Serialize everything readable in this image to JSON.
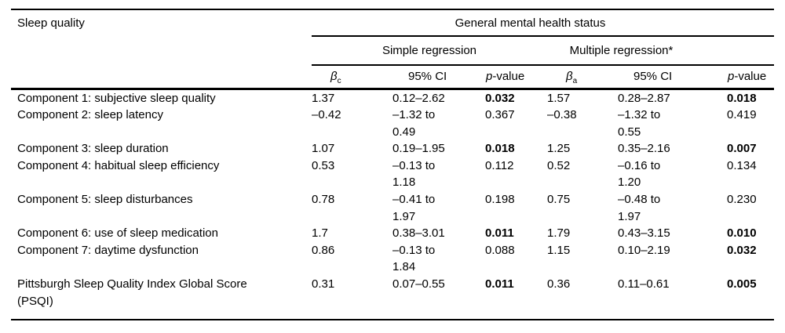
{
  "table": {
    "stub_header": "Sleep quality",
    "spanner": "General mental health status",
    "groups": {
      "simple": "Simple regression",
      "multiple": "Multiple regression*"
    },
    "col_headers": {
      "beta_symbol": "β",
      "beta_c_sub": "c",
      "beta_a_sub": "a",
      "ci_label_1": "95% CI",
      "ci_label_2": "95% CI",
      "p_italic": "p",
      "p_rest": "-value"
    },
    "rows": [
      {
        "label": "Component 1: subjective sleep quality",
        "simple": {
          "beta": "1.37",
          "ci": "0.12–2.62",
          "p": "0.032",
          "p_bold": true
        },
        "multiple": {
          "beta": "1.57",
          "ci": "0.28–2.87",
          "p": "0.018",
          "p_bold": true
        }
      },
      {
        "label": "Component 2: sleep latency",
        "simple": {
          "beta": "–0.42",
          "ci": "–1.32 to\n0.49",
          "p": "0.367",
          "p_bold": false
        },
        "multiple": {
          "beta": "–0.38",
          "ci": "–1.32 to\n0.55",
          "p": "0.419",
          "p_bold": false
        }
      },
      {
        "label": "Component 3: sleep duration",
        "simple": {
          "beta": "1.07",
          "ci": "0.19–1.95",
          "p": "0.018",
          "p_bold": true
        },
        "multiple": {
          "beta": "1.25",
          "ci": "0.35–2.16",
          "p": "0.007",
          "p_bold": true
        }
      },
      {
        "label": "Component 4: habitual sleep efficiency",
        "simple": {
          "beta": "0.53",
          "ci": "–0.13 to\n1.18",
          "p": "0.112",
          "p_bold": false
        },
        "multiple": {
          "beta": "0.52",
          "ci": "–0.16 to\n1.20",
          "p": "0.134",
          "p_bold": false
        }
      },
      {
        "label": "Component 5: sleep disturbances",
        "simple": {
          "beta": "0.78",
          "ci": "–0.41 to\n1.97",
          "p": "0.198",
          "p_bold": false
        },
        "multiple": {
          "beta": "0.75",
          "ci": "–0.48 to\n1.97",
          "p": "0.230",
          "p_bold": false
        }
      },
      {
        "label": "Component 6: use of sleep medication",
        "simple": {
          "beta": "1.7",
          "ci": "0.38–3.01",
          "p": "0.011",
          "p_bold": true
        },
        "multiple": {
          "beta": "1.79",
          "ci": "0.43–3.15",
          "p": "0.010",
          "p_bold": true
        }
      },
      {
        "label": "Component 7: daytime dysfunction",
        "simple": {
          "beta": "0.86",
          "ci": "–0.13 to\n1.84",
          "p": "0.088",
          "p_bold": false
        },
        "multiple": {
          "beta": "1.15",
          "ci": "0.10–2.19",
          "p": "0.032",
          "p_bold": true
        }
      },
      {
        "label": "Pittsburgh Sleep Quality Index Global Score\n(PSQI)",
        "simple": {
          "beta": "0.31",
          "ci": "0.07–0.55",
          "p": "0.011",
          "p_bold": true
        },
        "multiple": {
          "beta": "0.36",
          "ci": "0.11–0.61",
          "p": "0.005",
          "p_bold": true
        }
      }
    ]
  }
}
